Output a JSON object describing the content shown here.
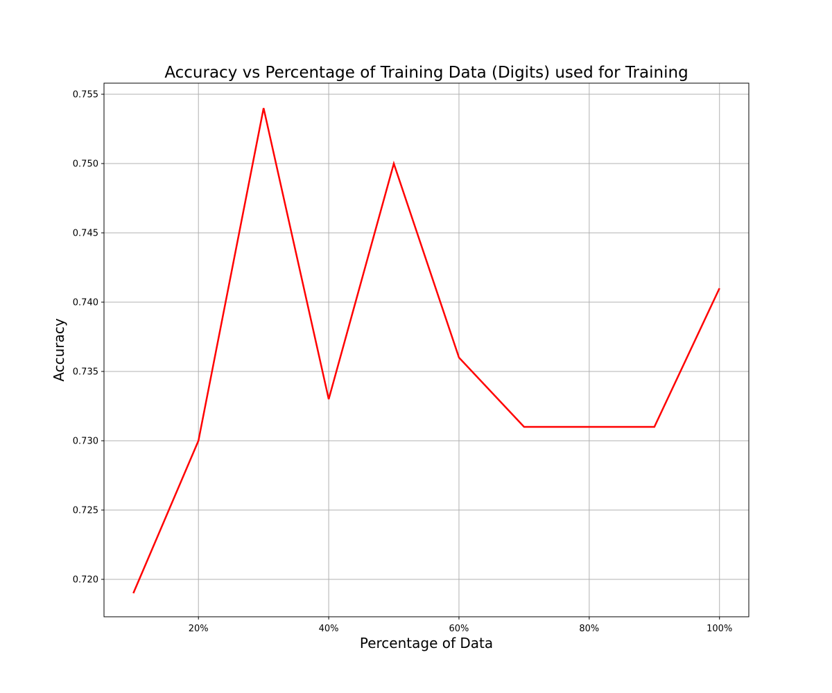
{
  "chart_data": {
    "type": "line",
    "title": "Accuracy vs Percentage of Training Data (Digits) used for Training",
    "xlabel": "Percentage of Data",
    "ylabel": "Accuracy",
    "xlim": [
      5.5,
      104.5
    ],
    "ylim": [
      0.7173,
      0.7558
    ],
    "grid": true,
    "x_ticks": [
      {
        "value": 20,
        "label": "20%"
      },
      {
        "value": 40,
        "label": "40%"
      },
      {
        "value": 60,
        "label": "60%"
      },
      {
        "value": 80,
        "label": "80%"
      },
      {
        "value": 100,
        "label": "100%"
      }
    ],
    "y_ticks": [
      {
        "value": 0.72,
        "label": "0.720"
      },
      {
        "value": 0.725,
        "label": "0.725"
      },
      {
        "value": 0.73,
        "label": "0.730"
      },
      {
        "value": 0.735,
        "label": "0.735"
      },
      {
        "value": 0.74,
        "label": "0.740"
      },
      {
        "value": 0.745,
        "label": "0.745"
      },
      {
        "value": 0.75,
        "label": "0.750"
      },
      {
        "value": 0.755,
        "label": "0.755"
      }
    ],
    "series": [
      {
        "color": "#ff0000",
        "x": [
          10,
          20,
          30,
          40,
          50,
          60,
          70,
          80,
          90,
          100
        ],
        "y": [
          0.719,
          0.73,
          0.754,
          0.733,
          0.75,
          0.736,
          0.731,
          0.731,
          0.731,
          0.741
        ]
      }
    ]
  }
}
